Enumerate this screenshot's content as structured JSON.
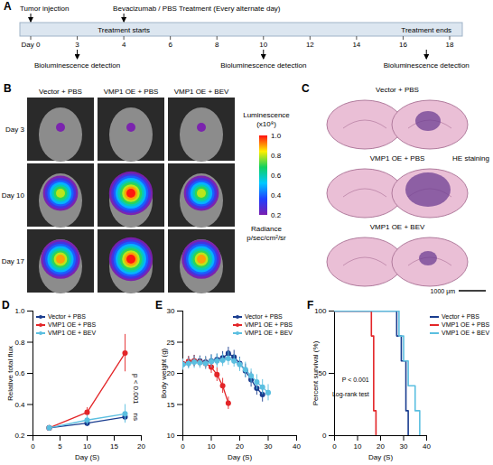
{
  "panel_labels": [
    "A",
    "B",
    "C",
    "D",
    "E",
    "F"
  ],
  "timeline": {
    "ticks": [
      {
        "value": 0,
        "label": "Day 0"
      },
      3,
      4,
      6,
      8,
      10,
      12,
      14,
      16,
      18
    ],
    "events_above": [
      {
        "text": "Tumor injection",
        "day": 0
      },
      {
        "text": "Bevacizumab / PBS Treatment (Every alternate day)",
        "day": 4
      }
    ],
    "bar_labels": [
      {
        "text": "Treatment starts",
        "day": 4
      },
      {
        "text": "Treatment ends",
        "day": 17
      }
    ],
    "events_below": [
      {
        "text": "Bioluminescence detection",
        "day": 3
      },
      {
        "text": "Bioluminescence detection",
        "day": 10
      },
      {
        "text": "Bioluminescence detection",
        "day": 17
      }
    ]
  },
  "imaging": {
    "columns": [
      "Vector + PBS",
      "VMP1 OE + PBS",
      "VMP1 OE + BEV"
    ],
    "rows": [
      "Day 3",
      "Day 10",
      "Day 17"
    ],
    "peak": [
      [
        0.2,
        0.2,
        0.2
      ],
      [
        0.8,
        1.0,
        0.8
      ],
      [
        0.9,
        1.0,
        0.9
      ]
    ],
    "colorbar": {
      "title": "Luminescence",
      "unit": "(x10⁸)",
      "range": [
        0.2,
        1.0
      ],
      "ticks": [
        0.2,
        0.4,
        0.6,
        0.8,
        {
          "value": 1,
          "label": "1.0"
        }
      ],
      "subtitle": "Radiance",
      "subtitle_unit": "p/sec/cm²/sr"
    }
  },
  "histology": {
    "labels": [
      "Vector + PBS",
      "VMP1 OE + PBS",
      "VMP1 OE + BEV"
    ],
    "stain": "HE staining",
    "scale_bar": "1000 μm"
  },
  "chart_data": [
    {
      "type": "line",
      "x_label": "Day (S)",
      "y_label": "Relative total flux",
      "xlim": [
        0,
        20
      ],
      "xticks": [
        0,
        5,
        10,
        15,
        20
      ],
      "ylim": [
        0.2,
        1.0
      ],
      "yticks": [
        0.2,
        0.4,
        0.6,
        0.8,
        {
          "value": 1,
          "label": "1.0"
        }
      ],
      "legend": "top-left",
      "series": [
        {
          "name": "Vector + PBS",
          "color": "#1a3d8f",
          "marker": "circle",
          "x": [
            3,
            10,
            17
          ],
          "values": [
            0.25,
            0.28,
            0.32
          ],
          "errors": [
            0.01,
            0.02,
            0.03
          ]
        },
        {
          "name": "VMP1 OE + PBS",
          "color": "#e32528",
          "marker": "circle",
          "x": [
            3,
            10,
            17
          ],
          "values": [
            0.25,
            0.35,
            0.73
          ],
          "errors": [
            0.01,
            0.03,
            0.12
          ]
        },
        {
          "name": "VMP1 OE + BEV",
          "color": "#5bbfe0",
          "marker": "circle",
          "x": [
            3,
            10,
            17
          ],
          "values": [
            0.25,
            0.3,
            0.34
          ],
          "errors": [
            0.01,
            0.03,
            0.06
          ]
        }
      ],
      "annotations": [
        {
          "text": "p < 0.001",
          "x": 19,
          "y": 0.5
        },
        {
          "text": "ns",
          "x": 19,
          "y": 0.32
        }
      ]
    },
    {
      "type": "line",
      "x_label": "Day (S)",
      "y_label": "Body weight (g)",
      "xlim": [
        0,
        40
      ],
      "xticks": [
        0,
        10,
        20,
        30,
        40
      ],
      "ylim": [
        10,
        30
      ],
      "yticks": [
        10,
        15,
        20,
        25,
        30
      ],
      "legend": "top-right",
      "series": [
        {
          "name": "Vector + PBS",
          "color": "#1a3d8f",
          "marker": "circle",
          "x": [
            0,
            2,
            4,
            6,
            8,
            10,
            12,
            14,
            16,
            18,
            20,
            22,
            24,
            26,
            28
          ],
          "values": [
            21.5,
            21.8,
            22.0,
            22.0,
            21.8,
            22.0,
            22.2,
            22.5,
            23.2,
            22.6,
            21.6,
            20.4,
            19.0,
            17.6,
            16.6
          ],
          "errors": [
            0.8,
            0.9,
            0.9,
            0.8,
            0.9,
            1.0,
            0.9,
            1.0,
            1.0,
            1.1,
            1.0,
            1.1,
            1.2,
            1.1,
            1.2
          ]
        },
        {
          "name": "VMP1 OE + PBS",
          "color": "#e32528",
          "marker": "circle",
          "x": [
            0,
            2,
            4,
            6,
            8,
            10,
            12,
            14,
            16
          ],
          "values": [
            21.5,
            21.9,
            22.0,
            21.8,
            21.6,
            21.0,
            19.8,
            18.0,
            15.2
          ],
          "errors": [
            0.8,
            0.8,
            0.9,
            0.8,
            0.9,
            1.0,
            1.1,
            1.2,
            1.0
          ]
        },
        {
          "name": "VMP1 OE + BEV",
          "color": "#5bbfe0",
          "marker": "circle",
          "x": [
            0,
            2,
            4,
            6,
            8,
            10,
            12,
            14,
            16,
            18,
            20,
            22,
            24,
            26,
            28,
            30
          ],
          "values": [
            21.4,
            21.6,
            21.8,
            21.7,
            21.6,
            21.9,
            22.0,
            22.1,
            22.4,
            22.0,
            21.4,
            20.6,
            19.6,
            18.6,
            17.8,
            16.9
          ],
          "errors": [
            0.9,
            0.9,
            1.0,
            0.9,
            1.0,
            1.0,
            1.1,
            1.0,
            1.1,
            1.0,
            1.1,
            1.2,
            1.1,
            1.2,
            1.2,
            1.3
          ]
        }
      ]
    },
    {
      "type": "step",
      "x_label": "Day (S)",
      "y_label": "Percent survival (%)",
      "xlim": [
        0,
        40
      ],
      "xticks": [
        0,
        10,
        20,
        30,
        40
      ],
      "ylim": [
        0,
        100
      ],
      "yticks": [
        0,
        50,
        100
      ],
      "legend": "right",
      "series": [
        {
          "name": "Vector + PBS",
          "color": "#1a3d8f",
          "x": [
            0,
            27,
            29,
            31,
            32
          ],
          "values": [
            100,
            80,
            60,
            20,
            0
          ]
        },
        {
          "name": "VMP1 OE + PBS",
          "color": "#e32528",
          "x": [
            0,
            16,
            17,
            18
          ],
          "values": [
            100,
            80,
            20,
            0
          ]
        },
        {
          "name": "VMP1 OE + BEV",
          "color": "#5bbfe0",
          "x": [
            0,
            28,
            30,
            32,
            35,
            37
          ],
          "values": [
            100,
            80,
            60,
            40,
            20,
            0
          ]
        }
      ],
      "annotations": [
        {
          "text": "P < 0.001",
          "x": 15,
          "y": 45
        },
        {
          "text": "Log-rank test",
          "x": 15,
          "y": 33
        }
      ]
    }
  ]
}
